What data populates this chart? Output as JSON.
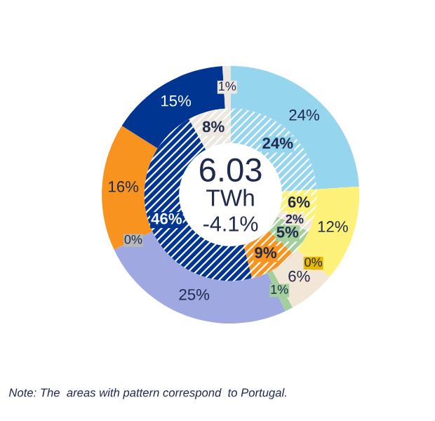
{
  "chart_data": {
    "type": "donut",
    "data_labels": true,
    "series": [
      {
        "values": [
          24,
          12,
          0,
          6,
          1,
          25,
          0,
          16,
          15,
          1
        ],
        "colors": [
          "#95d5ee",
          "#fef17a",
          "#e8b800",
          "#f2e6d6",
          "#a3cf9c",
          "#a0a8e2",
          "#b8b8b8",
          "#f7931e",
          "#003591",
          "#ece7df"
        ],
        "value_labels": [
          "24%",
          "12%",
          "0%",
          "6%",
          "1%",
          "25%",
          "0%",
          "16%",
          "15%",
          "1%"
        ]
      },
      {
        "values": [
          24,
          6,
          2,
          5,
          9,
          46,
          8
        ],
        "colors": [
          "#95d5ee",
          "#fef17a",
          "#f2e6d6",
          "#a3cf9c",
          "#f7931e",
          "#003591",
          "#ece7df"
        ],
        "value_labels": [
          "24%",
          "6%",
          "2%",
          "5%",
          "9%",
          "46%",
          "8%"
        ]
      }
    ],
    "annotations": [
      "6.03",
      "TWh",
      "-4.1%",
      "Note: The  areas with pattern correspond  to Portugal."
    ]
  }
}
